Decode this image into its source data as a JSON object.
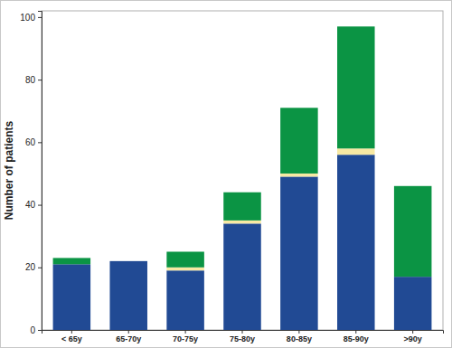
{
  "chart_data": {
    "type": "bar",
    "stacked": true,
    "y_label": "Number of patients",
    "categories": [
      "< 65y",
      "65-70y",
      "70-75y",
      "75-80y",
      "80-85y",
      "85-90y",
      ">90y"
    ],
    "series": [
      {
        "color": "#214a94",
        "values": [
          21,
          22,
          19,
          34,
          49,
          56,
          17
        ]
      },
      {
        "color": "#f7e9a3",
        "values": [
          0,
          0,
          1,
          1,
          1,
          2,
          0
        ]
      },
      {
        "color": "#0b9444",
        "values": [
          2,
          0,
          5,
          9,
          21,
          39,
          29
        ]
      }
    ],
    "ylim": [
      0,
      102
    ],
    "yticks": [
      0,
      20,
      40,
      60,
      80,
      100
    ]
  }
}
